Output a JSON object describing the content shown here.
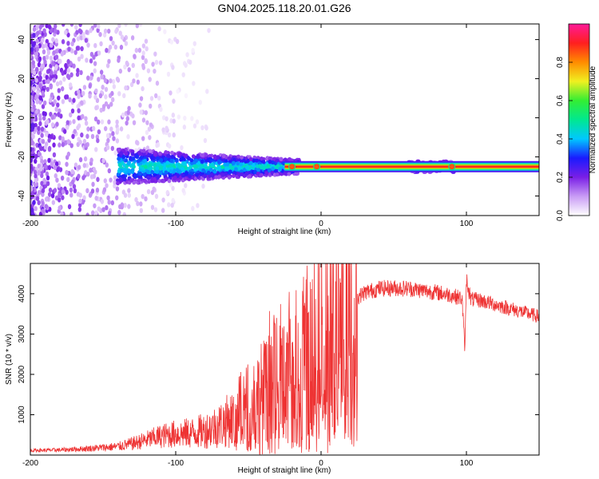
{
  "title": "GN04.2025.118.20.01.G26",
  "chart_data": [
    {
      "type": "heatmap",
      "xlabel": "Height of straight line (km)",
      "ylabel": "Frequency (Hz)",
      "xlim": [
        -200,
        150
      ],
      "ylim": [
        -50,
        48
      ],
      "xticks": [
        -200,
        -100,
        0,
        100
      ],
      "yticks": [
        -40,
        -20,
        0,
        20,
        40
      ],
      "colorbar": {
        "label": "Normalized spectral amplitude",
        "range": [
          0,
          1
        ],
        "ticks": [
          0.0,
          0.2,
          0.4,
          0.6,
          0.8
        ],
        "colormap": [
          "#ffffff",
          "#c99cf5",
          "#7a1fe6",
          "#1a1aff",
          "#00c8ff",
          "#00e890",
          "#33ee33",
          "#f0f020",
          "#ff8c00",
          "#ff1f1f",
          "#ff1a99"
        ]
      },
      "line_band": {
        "frequency": -25,
        "x_range": [
          -25,
          150
        ],
        "description_colors": [
          "#ff1a1a",
          "#ffd700",
          "#00c8a0",
          "#1a1aff"
        ]
      },
      "noise_region": {
        "x_range": [
          -200,
          -120
        ],
        "y_range": [
          -50,
          48
        ],
        "level": 0.2
      }
    },
    {
      "type": "line",
      "xlabel": "Height of straight line (km)",
      "ylabel": "SNR (10 * v/v)",
      "xlim": [
        -200,
        150
      ],
      "ylim": [
        0,
        4750
      ],
      "xticks": [
        -200,
        -100,
        0,
        100
      ],
      "yticks": [
        1000,
        2000,
        3000,
        4000
      ],
      "series": [
        {
          "color": "#ee3333",
          "envelope": [
            [
              -200,
              120
            ],
            [
              -180,
              130
            ],
            [
              -160,
              170
            ],
            [
              -140,
              220
            ],
            [
              -130,
              300
            ],
            [
              -120,
              400
            ],
            [
              -110,
              500
            ],
            [
              -100,
              560
            ],
            [
              -90,
              580
            ],
            [
              -80,
              650
            ],
            [
              -70,
              800
            ],
            [
              -60,
              1000
            ],
            [
              -50,
              1300
            ],
            [
              -40,
              1600
            ],
            [
              -30,
              1900
            ],
            [
              -20,
              2100
            ],
            [
              -15,
              2300
            ],
            [
              -10,
              2600
            ],
            [
              0,
              3000
            ],
            [
              10,
              3400
            ],
            [
              20,
              3800
            ],
            [
              30,
              4050
            ],
            [
              40,
              4150
            ],
            [
              50,
              4160
            ],
            [
              60,
              4150
            ],
            [
              70,
              4100
            ],
            [
              80,
              4050
            ],
            [
              90,
              3980
            ],
            [
              97,
              3900
            ],
            [
              99,
              2600
            ],
            [
              100,
              4400
            ],
            [
              103,
              3880
            ],
            [
              110,
              3850
            ],
            [
              120,
              3750
            ],
            [
              130,
              3650
            ],
            [
              140,
              3550
            ],
            [
              150,
              3450
            ]
          ]
        }
      ]
    }
  ]
}
